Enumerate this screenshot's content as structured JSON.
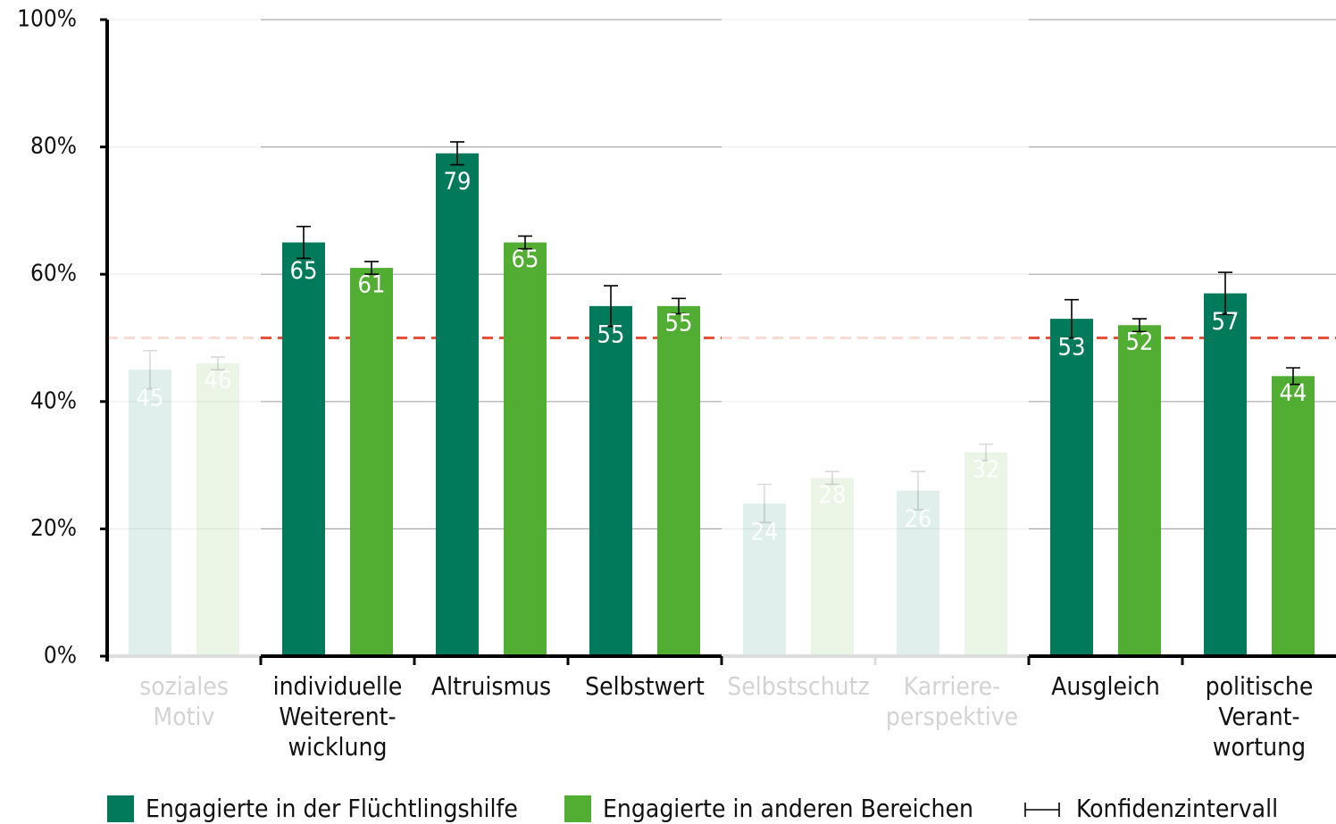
{
  "chart_data": {
    "type": "bar",
    "categories": [
      [
        "soziales",
        "Motiv"
      ],
      [
        "individuelle",
        "Weiterent-",
        "wicklung"
      ],
      [
        "Altruismus"
      ],
      [
        "Selbstwert"
      ],
      [
        "Selbstschutz"
      ],
      [
        "Karriere-",
        "perspektive"
      ],
      [
        "Ausgleich"
      ],
      [
        "politische",
        "Verant-",
        "wortung"
      ]
    ],
    "series": [
      {
        "name": "Engagierte in der Flüchtlingshilfe",
        "color": "#007a5a",
        "values": [
          45,
          65,
          79,
          55,
          24,
          26,
          53,
          57
        ],
        "errors": [
          3,
          2.5,
          1.8,
          3.2,
          3,
          3,
          3,
          3.3
        ]
      },
      {
        "name": "Engagierte in anderen Bereichen",
        "color": "#52ae32",
        "values": [
          46,
          61,
          65,
          55,
          28,
          32,
          52,
          44
        ],
        "errors": [
          1,
          1,
          1,
          1.2,
          1,
          1.3,
          1,
          1.3
        ]
      }
    ],
    "error_bar_label": "Konfidenzintervall",
    "faded_categories": [
      0,
      4,
      5
    ],
    "reference_line": {
      "value": 50,
      "color": "#e8503a"
    },
    "ylim": [
      0,
      100
    ],
    "yticks": [
      {
        "value": 0,
        "label": "0%"
      },
      {
        "value": 20,
        "label": "20%"
      },
      {
        "value": 40,
        "label": "40%"
      },
      {
        "value": 60,
        "label": "60%"
      },
      {
        "value": 80,
        "label": "80%"
      },
      {
        "value": 100,
        "label": "100%"
      }
    ],
    "grid": true
  }
}
